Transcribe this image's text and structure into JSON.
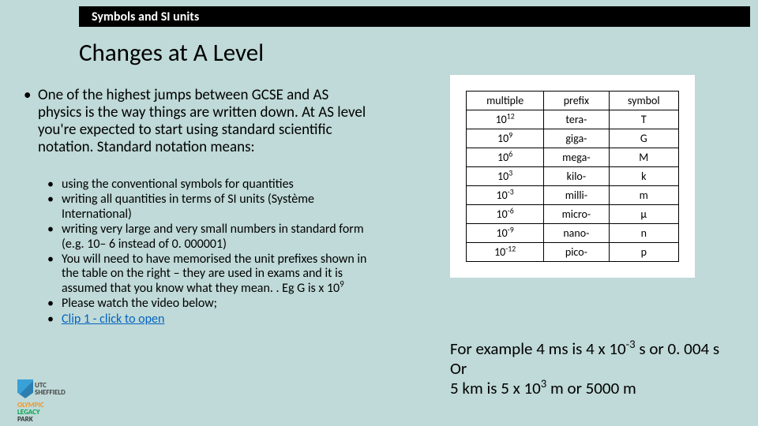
{
  "header": {
    "label": "Symbols and SI units"
  },
  "title": "Changes at A Level",
  "main_paragraph": "One of the highest jumps between GCSE and AS physics is the way things are written down. At AS level you're expected to start using standard scientific notation. Standard notation means:",
  "sub_bullets": [
    {
      "html": "using the conventional symbols for quantities"
    },
    {
      "html": " writing all quantities in terms of SI units (Système International)"
    },
    {
      "html": "writing very large and very small numbers in standard form (e.g. 10– 6 instead of 0. 000001)"
    },
    {
      "html": "You will need to have memorised the unit prefixes shown in the table on the right – they are used in exams and it is assumed that you know what they mean. . Eg G is x 10<sup>9</sup>"
    },
    {
      "html": "Please watch the video below;"
    },
    {
      "html": "<a href=\"#\" data-name=\"clip-1-link\" data-interactable=\"true\">Clip 1 - click to open</a>"
    }
  ],
  "table": {
    "headers": [
      "multiple",
      "prefix",
      "symbol"
    ],
    "rows": [
      [
        "10<sup>12</sup>",
        "tera-",
        "T"
      ],
      [
        "10<sup>9</sup>",
        "giga-",
        "G"
      ],
      [
        "10<sup>6</sup>",
        "mega-",
        "M"
      ],
      [
        "10<sup>3</sup>",
        "kilo-",
        "k"
      ],
      [
        "10<sup>-3</sup>",
        "milli-",
        "m"
      ],
      [
        "10<sup>-6</sup>",
        "micro-",
        "µ"
      ],
      [
        "10<sup>-9</sup>",
        "nano-",
        "n"
      ],
      [
        "10<sup>-12</sup>",
        "pico-",
        "p"
      ]
    ],
    "border_color": "#000000",
    "background_color": "#ffffff",
    "font_size": 14
  },
  "example_lines": [
    "For example 4 ms is 4 x 10<sup>-3</sup> s or 0. 004 s",
    "Or",
    "5 km is 5 x 10<sup>3</sup> m or 5000 m"
  ],
  "logos": {
    "utc": "UTC SHEFFIELD",
    "olp": {
      "line1": "OLYMPIC",
      "line2": "LEGACY",
      "line3": "PARK"
    }
  },
  "colors": {
    "page_bg": "#bfdad8",
    "header_bg": "#000000",
    "header_text": "#ffffff",
    "link": "#0563c1"
  }
}
